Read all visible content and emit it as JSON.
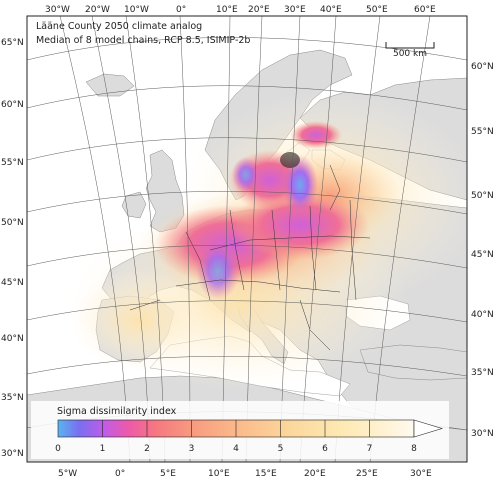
{
  "title": {
    "line1": "Lääne County 2050 climate analog",
    "line2": "Median of 8 model chains, RCP 8.5, ISIMIP-2b"
  },
  "scale_bar": {
    "label": "500 km"
  },
  "top_longitudes": [
    "30°W",
    "20°W",
    "10°W",
    "0°",
    "10°E",
    "20°E",
    "30°E",
    "40°E",
    "50°E",
    "60°E"
  ],
  "bottom_longitudes": [
    "5°W",
    "0°",
    "5°E",
    "10°E",
    "15°E",
    "20°E",
    "25°E",
    "30°E"
  ],
  "left_latitudes": [
    "65°N",
    "60°N",
    "55°N",
    "50°N",
    "45°N",
    "40°N",
    "35°N",
    "30°N"
  ],
  "right_latitudes": [
    "60°N",
    "55°N",
    "50°N",
    "45°N",
    "40°N",
    "35°N",
    "30°N"
  ],
  "colorbar": {
    "title": "Sigma dissimilarity index",
    "ticks": [
      "0",
      "1",
      "2",
      "3",
      "4",
      "5",
      "6",
      "7",
      "8"
    ],
    "range": [
      0,
      8
    ],
    "colors": [
      "#5ab4f0",
      "#7a6ef0",
      "#c05ce8",
      "#ee5aa8",
      "#f57a7f",
      "#f89b80",
      "#fbb98a",
      "#fcd79c",
      "#fde9b4",
      "#fff3d4",
      "#fffaf0"
    ]
  },
  "colors": {
    "ocean": "#ffffff",
    "land": "#dcdcdc",
    "graticule": "#555555",
    "border": "#333333"
  }
}
